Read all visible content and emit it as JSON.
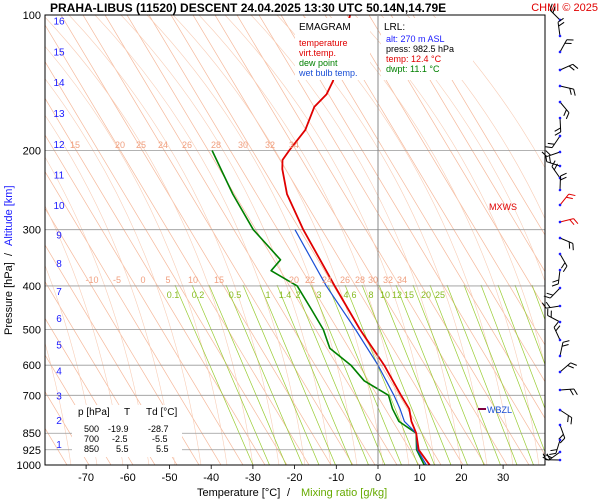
{
  "header": {
    "title": "PRAHA-LIBUS (11520)   DESCENT   24.04.2025 13:30 UTC  50.14N,14.79E",
    "copyright": "CHMI © 2025"
  },
  "legend": {
    "title": "EMAGRAM",
    "items": [
      {
        "label": "temperature",
        "color": "#e00000"
      },
      {
        "label": "virt.temp.",
        "color": "#e00000"
      },
      {
        "label": "dew point",
        "color": "#008000"
      },
      {
        "label": "wet bulb temp.",
        "color": "#1a4fd6"
      }
    ]
  },
  "lrl": {
    "title": "LRL:",
    "lines": [
      {
        "text": "alt: 270 m ASL",
        "color": "#1a1aff"
      },
      {
        "text": "press: 982.5 hPa",
        "color": "#000000"
      },
      {
        "text": "temp: 12.4 °C",
        "color": "#e00000"
      },
      {
        "text": "dwpt: 11.1 °C",
        "color": "#008000"
      }
    ]
  },
  "levels_table": {
    "headers": [
      "p [hPa]",
      "T",
      "Td [°C]"
    ],
    "rows": [
      [
        "500",
        "-19.9",
        "-28.7"
      ],
      [
        "700",
        "-2.5",
        "-5.5"
      ],
      [
        "850",
        "5.5",
        "5.5"
      ]
    ]
  },
  "markers": {
    "mxws": "MXWS",
    "wbzl": "WBZL"
  },
  "axes": {
    "xlabel_temp": "Temperature [°C]",
    "xlabel_sep": "/",
    "xlabel_mix": "Mixing ratio [g/kg]",
    "ylabel_p": "Pressure [hPa]",
    "ylabel_sep": "/",
    "ylabel_alt": "Altitude [km]"
  },
  "colors": {
    "temperature": "#e00000",
    "dewpoint": "#008000",
    "wetbulb": "#1a4fd6",
    "dry_adiabat": "#f5b89a",
    "mixing_ratio": "#99cc33",
    "isobar": "#999999"
  },
  "chart_data": {
    "type": "line",
    "y_scale": "log",
    "ylim": [
      1000,
      100
    ],
    "xlim": [
      -80,
      40
    ],
    "skew": true,
    "x_ticks": [
      -70,
      -60,
      -50,
      -40,
      -30,
      -20,
      -10,
      0,
      10,
      20,
      30
    ],
    "pressure_ticks": [
      100,
      200,
      300,
      400,
      500,
      600,
      700,
      850,
      925,
      1000
    ],
    "altitude_ticks_km": [
      1,
      2,
      3,
      4,
      5,
      6,
      7,
      8,
      9,
      10,
      11,
      12,
      13,
      14,
      15,
      16
    ],
    "dry_adiabat_labels": [
      15,
      20,
      25,
      24,
      26,
      28,
      30,
      32,
      34
    ],
    "moist_adiabat_labels": [
      -10,
      -5,
      0,
      5,
      10,
      15,
      20,
      22,
      24,
      26,
      28,
      30,
      32,
      34
    ],
    "mixing_ratio_labels": [
      "0.1",
      "0.2",
      "0.5",
      "1",
      "1.4",
      "2",
      "3",
      "4",
      "6",
      "8",
      "10",
      "12",
      "15",
      "20",
      "25"
    ],
    "series": [
      {
        "name": "temperature",
        "points": [
          [
            1000,
            12.4
          ],
          [
            925,
            8.0
          ],
          [
            850,
            5.5
          ],
          [
            800,
            3.0
          ],
          [
            750,
            1.0
          ],
          [
            700,
            -2.5
          ],
          [
            600,
            -10.0
          ],
          [
            500,
            -19.9
          ],
          [
            400,
            -31.0
          ],
          [
            300,
            -45.0
          ],
          [
            250,
            -53.0
          ],
          [
            220,
            -57.0
          ],
          [
            210,
            -58.0
          ],
          [
            200,
            -57.5
          ],
          [
            180,
            -56.0
          ],
          [
            160,
            -56.5
          ],
          [
            150,
            -55.0
          ],
          [
            140,
            -55.0
          ],
          [
            130,
            -56.0
          ],
          [
            120,
            -56.5
          ],
          [
            110,
            -57.5
          ],
          [
            100,
            -58.5
          ]
        ]
      },
      {
        "name": "dew point",
        "points": [
          [
            1000,
            11.1
          ],
          [
            925,
            7.5
          ],
          [
            850,
            5.5
          ],
          [
            800,
            0.0
          ],
          [
            750,
            -3.0
          ],
          [
            700,
            -5.5
          ],
          [
            650,
            -13.0
          ],
          [
            600,
            -18.0
          ],
          [
            550,
            -25.0
          ],
          [
            500,
            -28.7
          ],
          [
            450,
            -34.0
          ],
          [
            400,
            -40.0
          ],
          [
            370,
            -48.0
          ],
          [
            350,
            -47.0
          ],
          [
            300,
            -57.0
          ],
          [
            250,
            -66.0
          ],
          [
            200,
            -76.0
          ]
        ]
      },
      {
        "name": "wet bulb temp.",
        "points": [
          [
            1000,
            11.6
          ],
          [
            925,
            7.7
          ],
          [
            850,
            5.5
          ],
          [
            800,
            1.3
          ],
          [
            750,
            -1.2
          ],
          [
            700,
            -4.2
          ],
          [
            600,
            -11.5
          ],
          [
            500,
            -21.0
          ],
          [
            400,
            -33.0
          ],
          [
            300,
            -47.0
          ]
        ]
      }
    ]
  }
}
